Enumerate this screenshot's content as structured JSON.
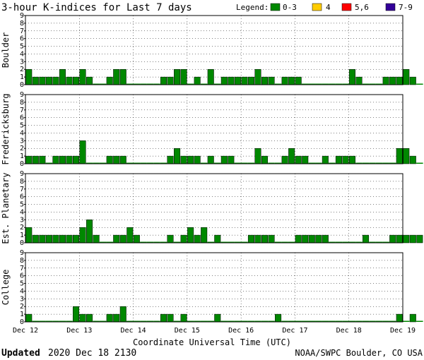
{
  "title": "3-hour K-indices for Last 7 days",
  "legend": {
    "label": "Legend:",
    "entries": [
      {
        "label": "0-3",
        "color": "#008800"
      },
      {
        "label": "4",
        "color": "#ffcc00"
      },
      {
        "label": "5,6",
        "color": "#ff0000"
      },
      {
        "label": "7-9",
        "color": "#330099"
      }
    ]
  },
  "xlabel": "Coordinate Universal Time (UTC)",
  "footer": {
    "updated_label": "Updated",
    "updated_value": "2020 Dec 18 2130",
    "credit": "NOAA/SWPC Boulder, CO USA"
  },
  "chart_data": {
    "type": "bar",
    "ylim": [
      0,
      9
    ],
    "yticks": [
      "0",
      "1",
      "2",
      "3",
      "4",
      "5",
      "6",
      "7",
      "8",
      "9"
    ],
    "xticks": [
      "Dec 12",
      "Dec 13",
      "Dec 14",
      "Dec 15",
      "Dec 16",
      "Dec 17",
      "Dec 18",
      "Dec 19"
    ],
    "intervals_per_day": 8,
    "bar_color": "#008800",
    "grid": "dotted",
    "series": [
      {
        "name": "Boulder",
        "values": [
          2,
          1,
          1,
          1,
          1,
          2,
          1,
          1,
          2,
          1,
          0,
          0,
          1,
          2,
          2,
          0,
          0,
          0,
          0,
          0,
          1,
          1,
          2,
          2,
          0,
          1,
          0,
          2,
          0,
          1,
          1,
          1,
          1,
          1,
          2,
          1,
          1,
          0,
          1,
          1,
          1,
          0,
          0,
          0,
          0,
          0,
          0,
          0,
          2,
          1,
          0,
          0,
          0,
          1,
          1,
          1,
          2,
          1,
          0
        ]
      },
      {
        "name": "Fredericksburg",
        "values": [
          1,
          1,
          1,
          0,
          1,
          1,
          1,
          1,
          3,
          0,
          0,
          0,
          1,
          1,
          1,
          0,
          0,
          0,
          0,
          0,
          0,
          1,
          2,
          1,
          1,
          1,
          0,
          1,
          0,
          1,
          1,
          0,
          0,
          0,
          2,
          1,
          0,
          0,
          1,
          2,
          1,
          1,
          0,
          0,
          1,
          0,
          1,
          1,
          1,
          0,
          0,
          0,
          0,
          0,
          0,
          2,
          2,
          1,
          0
        ]
      },
      {
        "name": "Est. Planetary",
        "values": [
          2,
          1,
          1,
          1,
          1,
          1,
          1,
          1,
          2,
          3,
          1,
          0,
          0,
          1,
          1,
          2,
          1,
          0,
          0,
          0,
          0,
          1,
          0,
          1,
          2,
          1,
          2,
          0,
          1,
          0,
          0,
          0,
          0,
          1,
          1,
          1,
          1,
          0,
          0,
          0,
          1,
          1,
          1,
          1,
          1,
          0,
          0,
          0,
          0,
          0,
          1,
          0,
          0,
          0,
          1,
          1,
          1,
          1,
          1
        ]
      },
      {
        "name": "College",
        "values": [
          1,
          0,
          0,
          0,
          0,
          0,
          0,
          2,
          1,
          1,
          0,
          0,
          1,
          1,
          2,
          0,
          0,
          0,
          0,
          0,
          1,
          1,
          0,
          1,
          0,
          0,
          0,
          0,
          1,
          0,
          0,
          0,
          0,
          0,
          0,
          0,
          0,
          1,
          0,
          0,
          0,
          0,
          0,
          0,
          0,
          0,
          0,
          0,
          0,
          0,
          0,
          0,
          0,
          0,
          0,
          1,
          0,
          1,
          0
        ]
      }
    ]
  }
}
